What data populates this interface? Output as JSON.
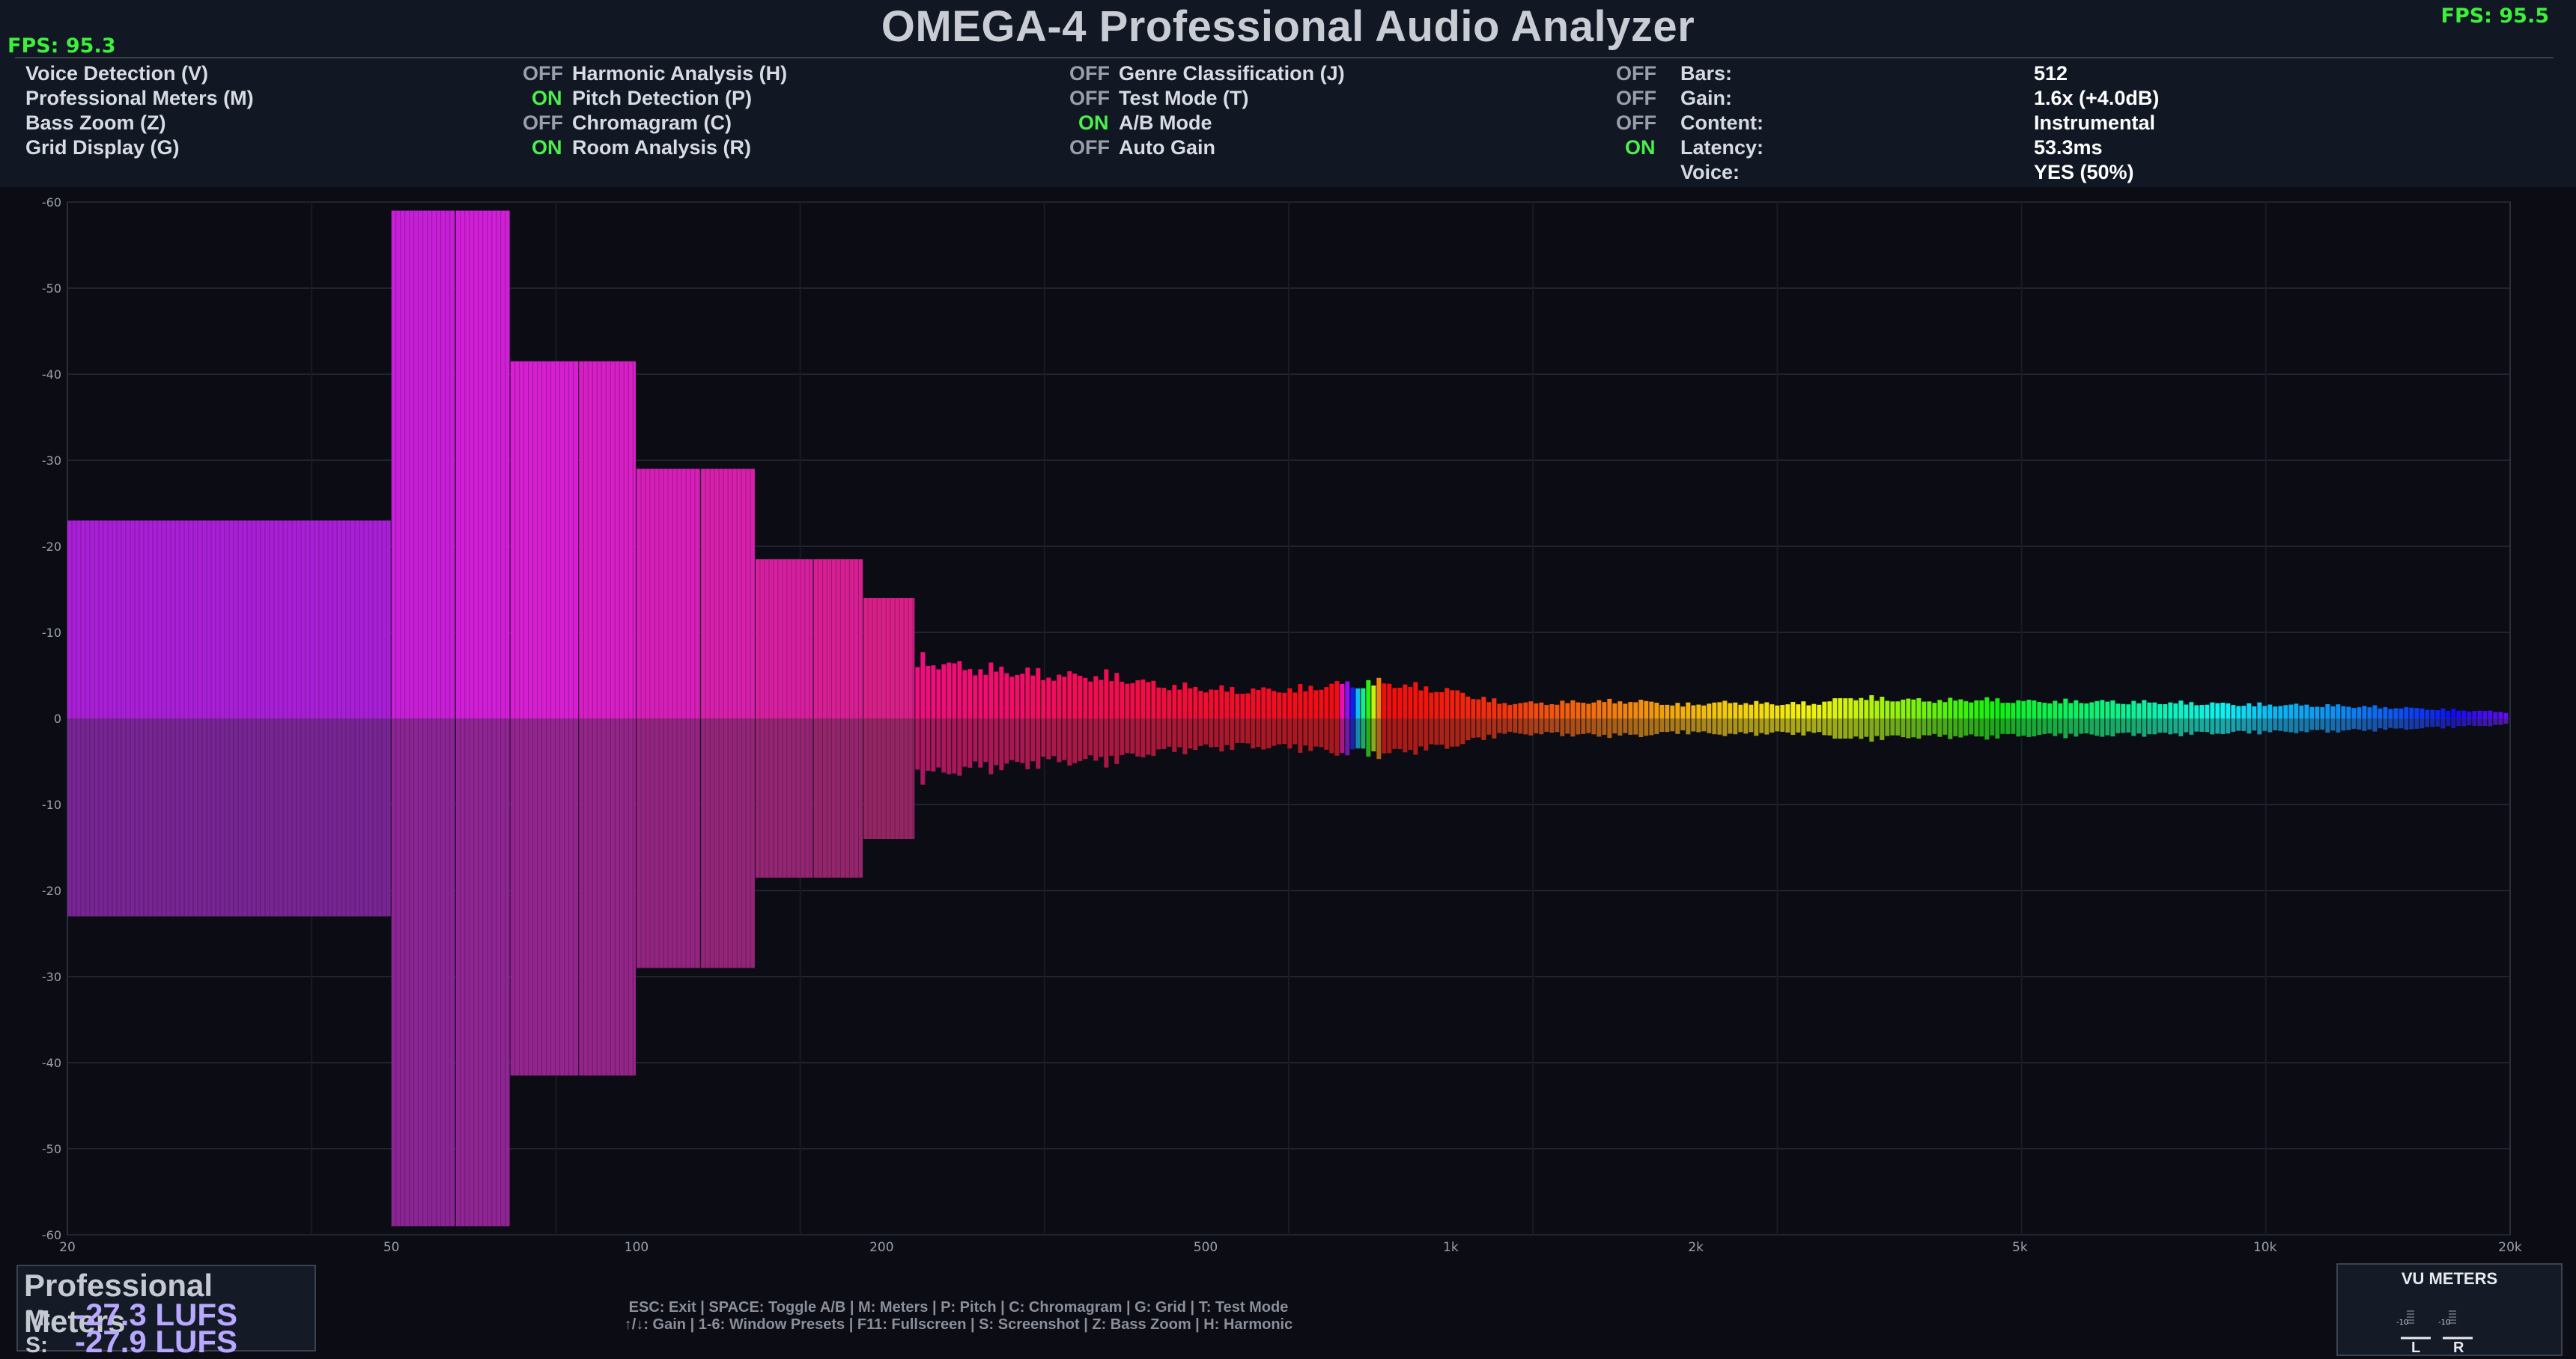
{
  "app": {
    "title": "OMEGA-4 Professional Audio Analyzer",
    "fps_left": "FPS: 95.3",
    "fps_right": "FPS: 95.5"
  },
  "settings": {
    "columns": [
      [
        {
          "label": "Voice Detection (V)",
          "state": "OFF"
        },
        {
          "label": "Professional Meters (M)",
          "state": "ON"
        },
        {
          "label": "Bass Zoom (Z)",
          "state": "OFF"
        },
        {
          "label": "Grid Display (G)",
          "state": "ON"
        }
      ],
      [
        {
          "label": "Harmonic Analysis (H)",
          "state": "OFF"
        },
        {
          "label": "Pitch Detection (P)",
          "state": "OFF"
        },
        {
          "label": "Chromagram (C)",
          "state": "ON"
        },
        {
          "label": "Room Analysis (R)",
          "state": "OFF"
        }
      ],
      [
        {
          "label": "Genre Classification (J)",
          "state": "OFF"
        },
        {
          "label": "Test Mode (T)",
          "state": "OFF"
        },
        {
          "label": "A/B Mode",
          "state": "OFF"
        },
        {
          "label": "Auto Gain",
          "state": "ON"
        }
      ]
    ],
    "info": [
      {
        "label": "Bars:",
        "value": "512"
      },
      {
        "label": "Gain:",
        "value": "1.6x (+4.0dB)"
      },
      {
        "label": "Content:",
        "value": "Instrumental"
      },
      {
        "label": "Latency:",
        "value": "53.3ms"
      },
      {
        "label": "Voice:",
        "value": "YES (50%)"
      }
    ]
  },
  "colors": {
    "on": "#4cf04c",
    "off": "#9aa0aa",
    "fps": "#3cf03c",
    "background": "#0b0c14",
    "lufs": "#b8a8ff"
  },
  "chart_data": {
    "type": "bar",
    "description_axis_mirrored": true,
    "y_tick_labels": [
      "-60",
      "-50",
      "-40",
      "-30",
      "-20",
      "-10",
      "0",
      "-10",
      "-20",
      "-30",
      "-40",
      "-50",
      "-60"
    ],
    "x_tick_labels": [
      {
        "label": "20",
        "freq": 20
      },
      {
        "label": "50",
        "freq": 50
      },
      {
        "label": "100",
        "freq": 100
      },
      {
        "label": "200",
        "freq": 200
      },
      {
        "label": "500",
        "freq": 500
      },
      {
        "label": "1k",
        "freq": 1000
      },
      {
        "label": "2k",
        "freq": 2000
      },
      {
        "label": "5k",
        "freq": 5000
      },
      {
        "label": "10k",
        "freq": 10000
      },
      {
        "label": "20k",
        "freq": 20000
      }
    ],
    "grid": true,
    "scale_db": 60,
    "bins": [
      {
        "f": 20,
        "v": 23,
        "hue": 285
      },
      {
        "f": 50,
        "v": 59,
        "hue": 295
      },
      {
        "f": 60,
        "v": 59,
        "hue": 298
      },
      {
        "f": 70,
        "v": 41.5,
        "hue": 302
      },
      {
        "f": 85,
        "v": 41.5,
        "hue": 306
      },
      {
        "f": 100,
        "v": 29,
        "hue": 310
      },
      {
        "f": 120,
        "v": 29,
        "hue": 314
      },
      {
        "f": 140,
        "v": 18.5,
        "hue": 318
      },
      {
        "f": 165,
        "v": 18.5,
        "hue": 322
      },
      {
        "f": 190,
        "v": 14,
        "hue": 326
      },
      {
        "f": 220,
        "v": 7,
        "hue": 330
      },
      {
        "f": 250,
        "v": 6,
        "hue": 333
      },
      {
        "f": 290,
        "v": 5.5,
        "hue": 336
      },
      {
        "f": 330,
        "v": 5,
        "hue": 340
      },
      {
        "f": 380,
        "v": 5,
        "hue": 343
      },
      {
        "f": 430,
        "v": 4,
        "hue": 346
      },
      {
        "f": 490,
        "v": 3.5,
        "hue": 350
      },
      {
        "f": 560,
        "v": 3.3,
        "hue": 353
      },
      {
        "f": 640,
        "v": 3.4,
        "hue": 356
      },
      {
        "f": 720,
        "v": 4.0,
        "hue": 358
      },
      {
        "f": 820,
        "v": 4.2,
        "hue": 0
      },
      {
        "f": 920,
        "v": 3.6,
        "hue": 2
      },
      {
        "f": 1000,
        "v": 3.2,
        "hue": 5
      },
      {
        "f": 1150,
        "v": 1.8,
        "hue": 10
      },
      {
        "f": 1300,
        "v": 1.8,
        "hue": 18
      },
      {
        "f": 1500,
        "v": 2.0,
        "hue": 26
      },
      {
        "f": 1700,
        "v": 2.0,
        "hue": 34
      },
      {
        "f": 1900,
        "v": 1.6,
        "hue": 42
      },
      {
        "f": 2200,
        "v": 1.9,
        "hue": 50
      },
      {
        "f": 2500,
        "v": 1.7,
        "hue": 56
      },
      {
        "f": 2800,
        "v": 1.8,
        "hue": 62
      },
      {
        "f": 3100,
        "v": 2.5,
        "hue": 70
      },
      {
        "f": 3500,
        "v": 2.2,
        "hue": 85
      },
      {
        "f": 4000,
        "v": 2.1,
        "hue": 100
      },
      {
        "f": 4500,
        "v": 2.2,
        "hue": 115
      },
      {
        "f": 5000,
        "v": 2.0,
        "hue": 130
      },
      {
        "f": 6000,
        "v": 2.0,
        "hue": 145
      },
      {
        "f": 7000,
        "v": 1.9,
        "hue": 158
      },
      {
        "f": 8000,
        "v": 1.8,
        "hue": 170
      },
      {
        "f": 9000,
        "v": 1.7,
        "hue": 182
      },
      {
        "f": 10000,
        "v": 1.6,
        "hue": 194
      },
      {
        "f": 12000,
        "v": 1.5,
        "hue": 205
      },
      {
        "f": 14000,
        "v": 1.3,
        "hue": 218
      },
      {
        "f": 16000,
        "v": 1.1,
        "hue": 232
      },
      {
        "f": 18000,
        "v": 0.9,
        "hue": 250
      },
      {
        "f": 20000,
        "v": 0.7,
        "hue": 265
      }
    ]
  },
  "footer": {
    "hints_line1": "ESC: Exit | SPACE: Toggle A/B | M: Meters | P: Pitch | C: Chromagram | G: Grid | T: Test Mode",
    "hints_line2": "↑/↓: Gain | 1-6: Window Presets | F11: Fullscreen | S: Screenshot | Z: Bass Zoom | H: Harmonic"
  },
  "meters": {
    "title": "Professional Meters",
    "momentary_label": "M:",
    "momentary_value": "-27.3 LUFS",
    "short_label": "S:",
    "short_value": "-27.9 LUFS"
  },
  "vu": {
    "title": "VU METERS",
    "left_label": "L",
    "right_label": "R",
    "scale_label": "-10"
  }
}
